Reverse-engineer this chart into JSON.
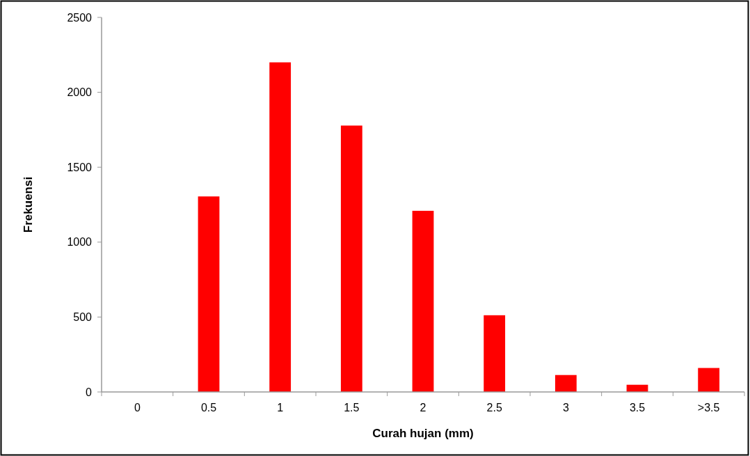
{
  "chart_data": {
    "type": "bar",
    "xlabel": "Curah hujan (mm)",
    "ylabel": "Frekuensi",
    "categories": [
      "0",
      "0.5",
      "1",
      "1.5",
      "2",
      "2.5",
      "3",
      "3.5",
      ">3.5"
    ],
    "values": [
      0,
      1305,
      2200,
      1778,
      1209,
      512,
      113,
      48,
      160
    ],
    "color": "#ff0000",
    "ylim": [
      0,
      2500
    ],
    "yticks": [
      0,
      500,
      1000,
      1500,
      2000,
      2500
    ],
    "grid": false
  }
}
